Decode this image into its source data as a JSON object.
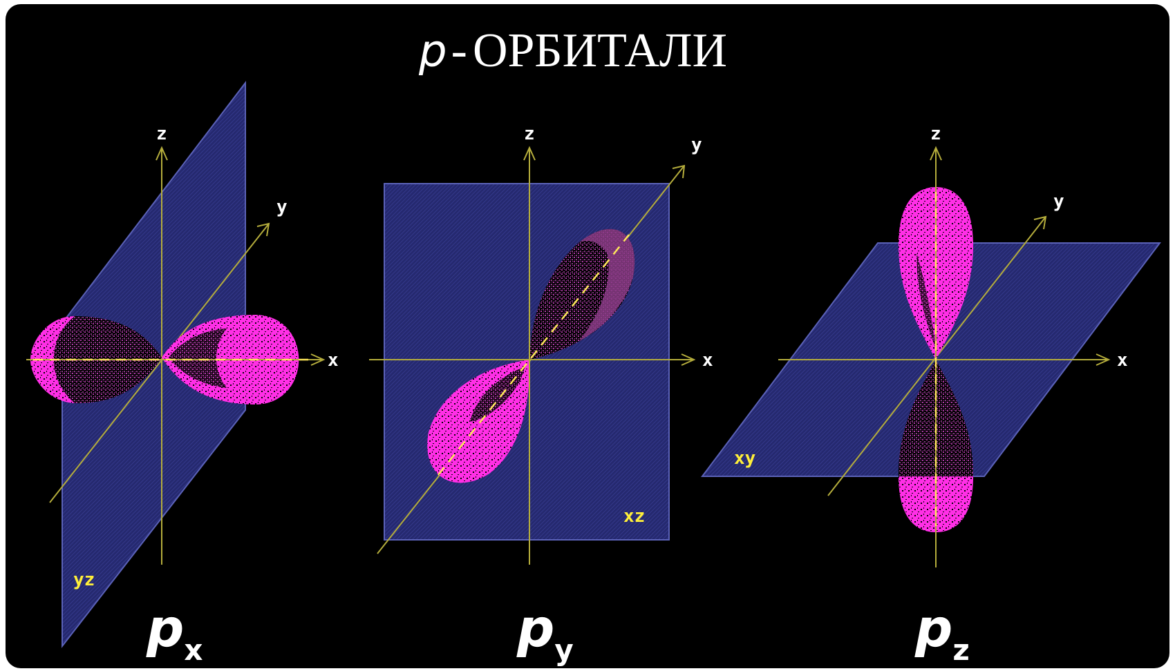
{
  "title": {
    "p": "p",
    "dash": "-",
    "text": "ОРБИТАЛИ"
  },
  "panels": [
    {
      "id": "px",
      "symbol": "p",
      "index": "x",
      "plane": "yz",
      "axes": {
        "x": "x",
        "y": "y",
        "z": "z"
      }
    },
    {
      "id": "py",
      "symbol": "p",
      "index": "y",
      "plane": "xz",
      "axes": {
        "x": "x",
        "y": "y",
        "z": "z"
      }
    },
    {
      "id": "pz",
      "symbol": "p",
      "index": "z",
      "plane": "xy",
      "axes": {
        "x": "x",
        "y": "y",
        "z": "z"
      }
    }
  ],
  "colors": {
    "background": "#000000",
    "plane": "#2b2f7e",
    "plane_edge": "#5b62b8",
    "axis": "#b5ad3c",
    "axis_label": "#ffffff",
    "plane_label": "#ffef3a",
    "lobe_bright": "#ff2fe6",
    "lobe_dim": "#8a3c86",
    "dash": "#ffe85a",
    "text": "#ffffff"
  }
}
